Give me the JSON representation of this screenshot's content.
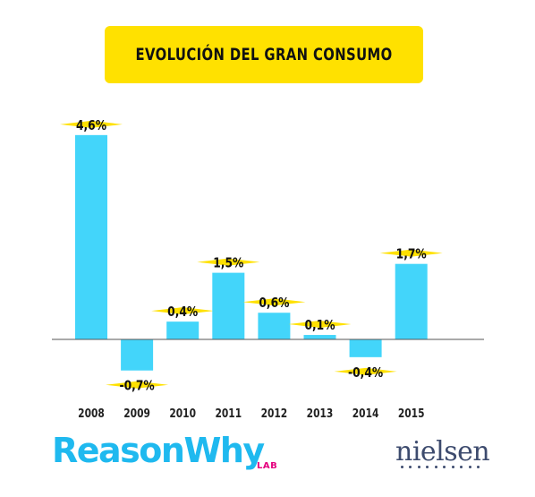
{
  "chart_data": {
    "type": "bar",
    "title": "EVOLUCIÓN DEL GRAN CONSUMO",
    "categories": [
      "2008",
      "2009",
      "2010",
      "2011",
      "2012",
      "2013",
      "2014",
      "2015"
    ],
    "values": [
      4.6,
      -0.7,
      0.4,
      1.5,
      0.6,
      0.1,
      -0.4,
      1.7
    ],
    "data_labels": [
      "4,6%",
      "-0,7%",
      "0,4%",
      "1,5%",
      "0,6%",
      "0,1%",
      "-0,4%",
      "1,7%"
    ],
    "xlabel": "",
    "ylabel": "",
    "grid": false,
    "colors": {
      "bar": "#43d5fa",
      "label_marker": "#ffe100",
      "title_box": "#ffe100",
      "axis": "#555555"
    }
  },
  "logos": {
    "reasonwhy": "ReasonWhy",
    "reasonwhy_sub": "LAB",
    "nielsen": "nielsen"
  }
}
